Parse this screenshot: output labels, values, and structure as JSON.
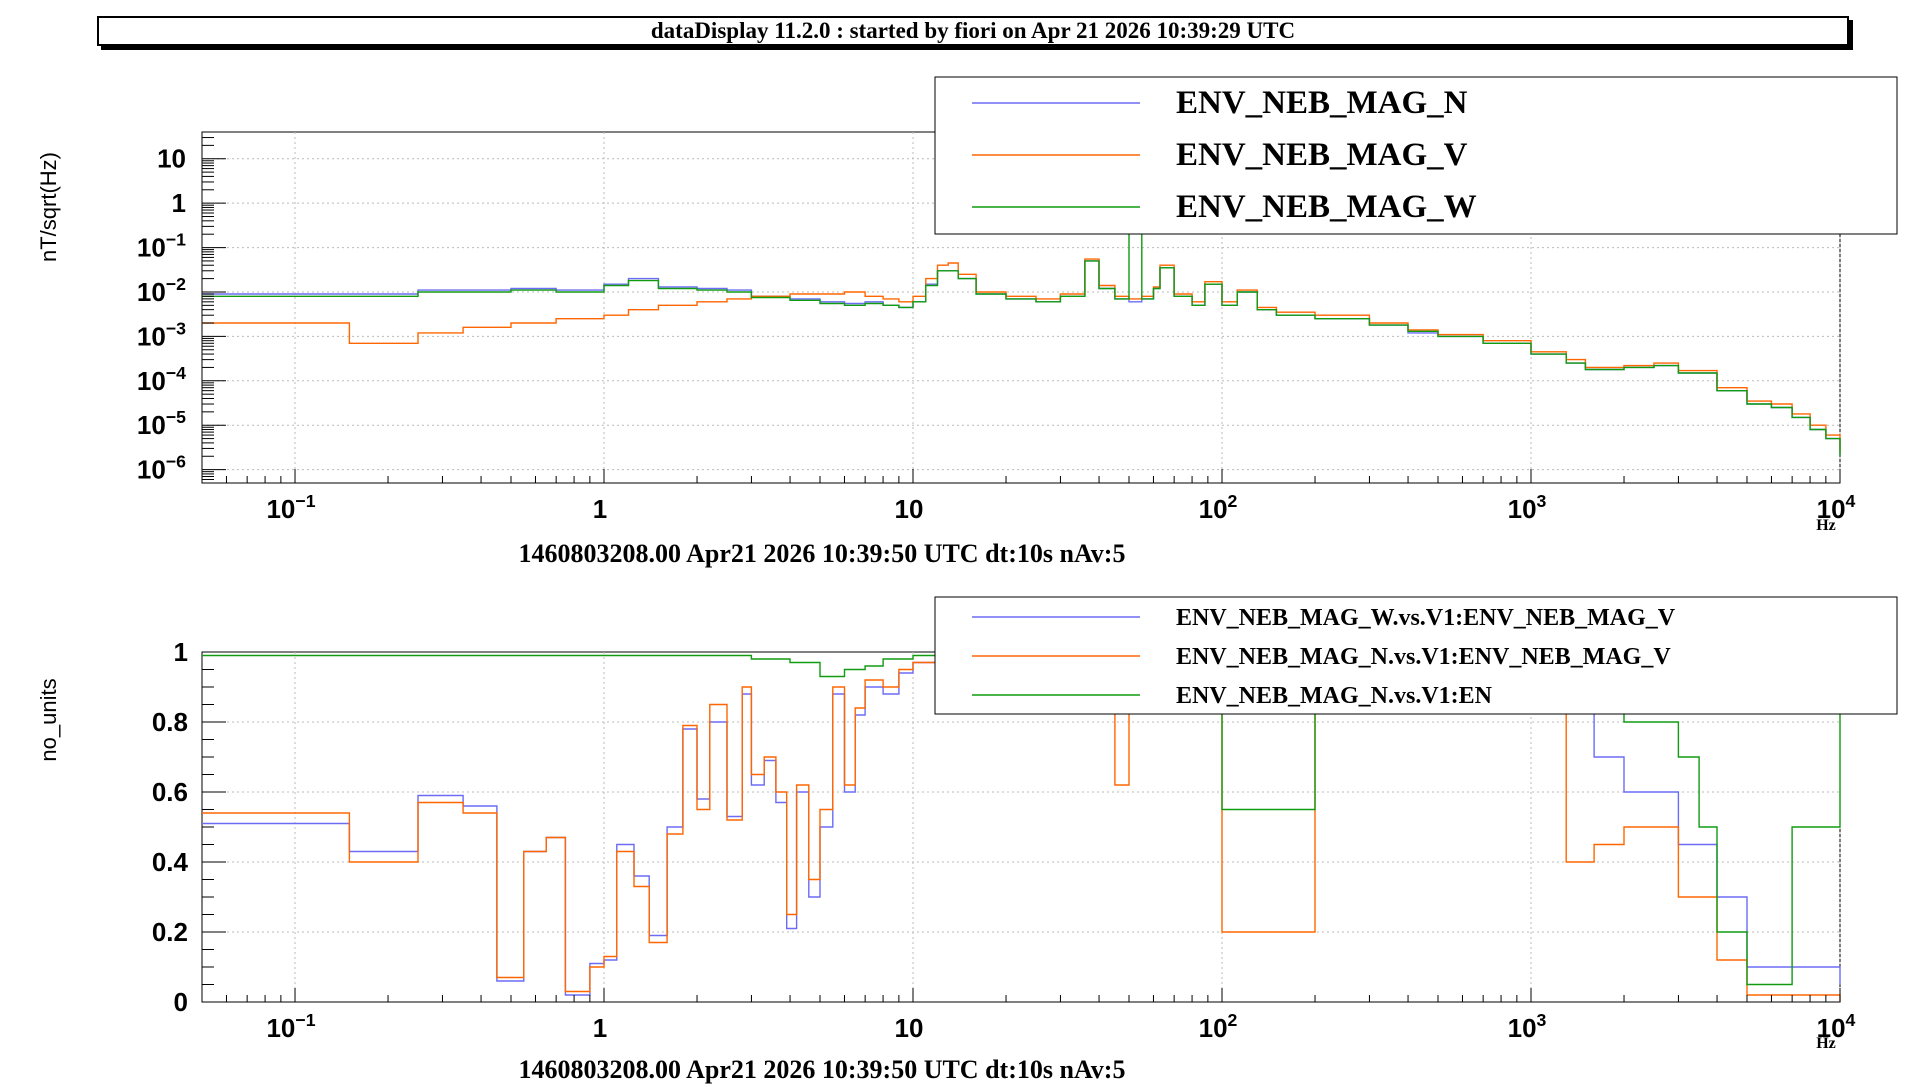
{
  "header": {
    "title": "dataDisplay 11.2.0 : started by fiori on Apr 21 2026 10:39:29 UTC"
  },
  "colors": {
    "series_n": "#6b6bf5",
    "series_v": "#ff6600",
    "series_w": "#109b10"
  },
  "chart_data": [
    {
      "type": "line",
      "xscale": "log",
      "yscale": "log",
      "xlim": [
        0.05,
        10000
      ],
      "ylim": [
        5e-07,
        40
      ],
      "xlabel": "1460803208.00 Apr21 2026 10:39:50 UTC dt:10s nAv:5",
      "x_unit": "Hz",
      "ylabel": "nT/sqrt(Hz)",
      "grid": true,
      "legend_position": "top-right",
      "x_ticks": [
        "10^-1",
        "1",
        "10",
        "10^2",
        "10^3",
        "10^4"
      ],
      "y_ticks": [
        "10^-6",
        "10^-5",
        "10^-4",
        "10^-3",
        "10^-2",
        "10^-1",
        "1",
        "10"
      ],
      "series": [
        {
          "name": "ENV_NEB_MAG_N",
          "color": "#6b6bf5",
          "x": [
            0.05,
            0.15,
            0.25,
            0.35,
            0.5,
            0.7,
            1.0,
            1.2,
            1.5,
            2.0,
            2.5,
            3.0,
            4.0,
            5.0,
            6.0,
            7.0,
            8.0,
            9.0,
            10,
            11,
            12,
            13,
            14,
            16,
            20,
            25,
            30,
            36,
            40,
            45,
            50,
            55,
            60,
            63,
            70,
            80,
            88,
            100,
            112,
            130,
            150,
            200,
            300,
            400,
            500,
            700,
            1000,
            1300,
            1500,
            2000,
            2500,
            3000,
            4000,
            5000,
            6000,
            7000,
            8000,
            9000,
            10000
          ],
          "y": [
            0.009,
            0.009,
            0.011,
            0.011,
            0.012,
            0.011,
            0.015,
            0.02,
            0.013,
            0.012,
            0.011,
            0.008,
            0.007,
            0.006,
            0.0055,
            0.006,
            0.005,
            0.0045,
            0.006,
            0.015,
            0.03,
            0.03,
            0.02,
            0.009,
            0.007,
            0.006,
            0.008,
            0.05,
            0.012,
            0.007,
            0.006,
            0.007,
            0.012,
            0.035,
            0.008,
            0.005,
            0.015,
            0.005,
            0.01,
            0.004,
            0.003,
            0.0025,
            0.0018,
            0.0012,
            0.001,
            0.0007,
            0.0004,
            0.00025,
            0.00018,
            0.0002,
            0.00022,
            0.00015,
            6e-05,
            3e-05,
            2.5e-05,
            1.5e-05,
            8e-06,
            5e-06,
            2e-06
          ]
        },
        {
          "name": "ENV_NEB_MAG_V",
          "color": "#ff6600",
          "x": [
            0.05,
            0.15,
            0.25,
            0.35,
            0.5,
            0.7,
            1.0,
            1.2,
            1.5,
            2.0,
            2.5,
            3.0,
            4.0,
            5.0,
            6.0,
            7.0,
            8.0,
            9.0,
            10,
            11,
            12,
            13,
            14,
            16,
            20,
            25,
            30,
            36,
            40,
            45,
            50,
            55,
            60,
            63,
            70,
            80,
            88,
            100,
            112,
            130,
            150,
            200,
            300,
            400,
            500,
            700,
            1000,
            1300,
            1500,
            2000,
            2500,
            3000,
            4000,
            5000,
            6000,
            7000,
            8000,
            9000,
            10000
          ],
          "y": [
            0.002,
            0.0007,
            0.0012,
            0.0016,
            0.002,
            0.0025,
            0.003,
            0.004,
            0.005,
            0.006,
            0.007,
            0.008,
            0.009,
            0.009,
            0.01,
            0.008,
            0.007,
            0.006,
            0.008,
            0.02,
            0.04,
            0.045,
            0.025,
            0.01,
            0.008,
            0.007,
            0.009,
            0.055,
            0.014,
            0.008,
            0.007,
            0.008,
            0.013,
            0.04,
            0.009,
            0.006,
            0.017,
            0.006,
            0.011,
            0.0045,
            0.0035,
            0.003,
            0.002,
            0.0014,
            0.0011,
            0.0008,
            0.00045,
            0.0003,
            0.0002,
            0.00022,
            0.00025,
            0.00017,
            7e-05,
            3.5e-05,
            3e-05,
            1.8e-05,
            1e-05,
            6e-06,
            2.5e-06
          ]
        },
        {
          "name": "ENV_NEB_MAG_W",
          "color": "#109b10",
          "x": [
            0.05,
            0.15,
            0.25,
            0.35,
            0.5,
            0.7,
            1.0,
            1.2,
            1.5,
            2.0,
            2.5,
            3.0,
            4.0,
            5.0,
            6.0,
            7.0,
            8.0,
            9.0,
            10,
            11,
            12,
            13,
            14,
            16,
            20,
            25,
            30,
            36,
            40,
            45,
            50,
            55,
            60,
            63,
            70,
            80,
            88,
            100,
            112,
            130,
            150,
            200,
            300,
            400,
            500,
            700,
            1000,
            1300,
            1500,
            2000,
            2500,
            3000,
            4000,
            5000,
            6000,
            7000,
            8000,
            9000,
            10000
          ],
          "y": [
            0.008,
            0.008,
            0.01,
            0.01,
            0.011,
            0.01,
            0.014,
            0.018,
            0.012,
            0.011,
            0.01,
            0.0075,
            0.0065,
            0.0055,
            0.005,
            0.0055,
            0.005,
            0.0045,
            0.006,
            0.014,
            0.03,
            0.03,
            0.02,
            0.009,
            0.007,
            0.006,
            0.008,
            0.05,
            0.012,
            0.007,
            12,
            0.007,
            0.012,
            0.035,
            0.008,
            0.005,
            0.015,
            0.005,
            0.01,
            0.004,
            0.003,
            0.0025,
            0.0018,
            0.0013,
            0.001,
            0.0007,
            0.0004,
            0.00025,
            0.00018,
            0.0002,
            0.00022,
            0.00015,
            6e-05,
            3e-05,
            2.5e-05,
            1.5e-05,
            8e-06,
            5e-06,
            2e-06
          ]
        }
      ]
    },
    {
      "type": "line",
      "xscale": "log",
      "yscale": "linear",
      "xlim": [
        0.05,
        10000
      ],
      "ylim": [
        0,
        1
      ],
      "xlabel": "1460803208.00 Apr21 2026 10:39:50 UTC dt:10s nAv:5",
      "x_unit": "Hz",
      "ylabel": "no_units",
      "grid": true,
      "legend_position": "top-right",
      "x_ticks": [
        "10^-1",
        "1",
        "10",
        "10^2",
        "10^3",
        "10^4"
      ],
      "y_ticks": [
        "0",
        "0.2",
        "0.4",
        "0.6",
        "0.8",
        "1"
      ],
      "series": [
        {
          "name": "ENV_NEB_MAG_W.vs.V1:ENV_NEB_MAG_V",
          "color": "#6b6bf5",
          "x": [
            0.05,
            0.15,
            0.25,
            0.35,
            0.45,
            0.55,
            0.65,
            0.75,
            0.9,
            1.0,
            1.1,
            1.25,
            1.4,
            1.6,
            1.8,
            2.0,
            2.2,
            2.5,
            2.8,
            3.0,
            3.3,
            3.6,
            3.9,
            4.2,
            4.6,
            5.0,
            5.5,
            6.0,
            6.5,
            7.0,
            8.0,
            9.0,
            10,
            12,
            20,
            50,
            100,
            200,
            500,
            1000,
            1300,
            1600,
            2000,
            3000,
            4000,
            5000,
            10000
          ],
          "y": [
            0.51,
            0.43,
            0.59,
            0.56,
            0.06,
            0.43,
            0.47,
            0.02,
            0.11,
            0.12,
            0.45,
            0.36,
            0.19,
            0.5,
            0.78,
            0.58,
            0.8,
            0.53,
            0.88,
            0.62,
            0.69,
            0.57,
            0.21,
            0.6,
            0.3,
            0.5,
            0.88,
            0.6,
            0.82,
            0.9,
            0.88,
            0.94,
            0.97,
            0.99,
            0.99,
            0.98,
            0.96,
            0.97,
            0.96,
            0.95,
            0.85,
            0.7,
            0.6,
            0.45,
            0.3,
            0.1,
            0.05
          ]
        },
        {
          "name": "ENV_NEB_MAG_N.vs.V1:ENV_NEB_MAG_V",
          "color": "#ff6600",
          "x": [
            0.05,
            0.15,
            0.25,
            0.35,
            0.45,
            0.55,
            0.65,
            0.75,
            0.9,
            1.0,
            1.1,
            1.25,
            1.4,
            1.6,
            1.8,
            2.0,
            2.2,
            2.5,
            2.8,
            3.0,
            3.3,
            3.6,
            3.9,
            4.2,
            4.6,
            5.0,
            5.5,
            6.0,
            6.5,
            7.0,
            8.0,
            9.0,
            10,
            12,
            20,
            45,
            50,
            100,
            200,
            500,
            1000,
            1300,
            1600,
            2000,
            3000,
            4000,
            5000,
            10000
          ],
          "y": [
            0.54,
            0.4,
            0.57,
            0.54,
            0.07,
            0.43,
            0.47,
            0.03,
            0.1,
            0.13,
            0.43,
            0.33,
            0.17,
            0.48,
            0.79,
            0.55,
            0.85,
            0.52,
            0.9,
            0.65,
            0.7,
            0.6,
            0.25,
            0.62,
            0.35,
            0.55,
            0.9,
            0.62,
            0.84,
            0.92,
            0.9,
            0.95,
            0.97,
            0.98,
            0.97,
            0.62,
            0.95,
            0.2,
            0.92,
            0.9,
            0.85,
            0.4,
            0.45,
            0.5,
            0.3,
            0.12,
            0.02,
            0.0
          ]
        },
        {
          "name": "ENV_NEB_MAG_N.vs.V1:EN",
          "color": "#109b10",
          "x": [
            0.05,
            0.5,
            1.0,
            2.0,
            3.0,
            4.0,
            5.0,
            6.0,
            7.0,
            8.0,
            10,
            20,
            50,
            100,
            200,
            500,
            1000,
            1500,
            2000,
            3000,
            3500,
            4000,
            5000,
            7000,
            10000
          ],
          "y": [
            0.99,
            0.99,
            0.99,
            0.99,
            0.98,
            0.97,
            0.93,
            0.95,
            0.96,
            0.98,
            0.99,
            1.0,
            1.0,
            0.55,
            0.99,
            0.98,
            0.95,
            0.85,
            0.8,
            0.7,
            0.5,
            0.2,
            0.05,
            0.5,
            0.9
          ]
        }
      ]
    }
  ]
}
